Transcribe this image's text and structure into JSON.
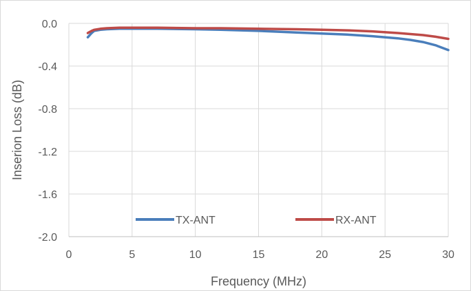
{
  "chart_data": {
    "type": "line",
    "title": "",
    "xlabel": "Frequency (MHz)",
    "ylabel": "Inserion Loss (dB)",
    "xlim": [
      0,
      30
    ],
    "ylim": [
      -2.0,
      0.0
    ],
    "xticks": [
      0,
      5,
      10,
      15,
      20,
      25,
      30
    ],
    "yticks": [
      0.0,
      -0.4,
      -0.8,
      -1.2,
      -1.6,
      -2.0
    ],
    "xtick_labels": [
      "0",
      "5",
      "10",
      "15",
      "20",
      "25",
      "30"
    ],
    "ytick_labels": [
      "0.0",
      "-0.4",
      "-0.8",
      "-1.2",
      "-1.6",
      "-2.0"
    ],
    "grid": true,
    "legend_position": "bottom-inside",
    "series": [
      {
        "name": "TX-ANT",
        "color": "#4a7ebb",
        "x": [
          1.5,
          1.8,
          2.0,
          2.5,
          3.0,
          4.0,
          5.0,
          7.0,
          10.0,
          12.0,
          15.0,
          18.0,
          20.0,
          22.0,
          24.0,
          26.0,
          27.0,
          28.0,
          29.0,
          30.0
        ],
        "y": [
          -0.13,
          -0.09,
          -0.07,
          -0.06,
          -0.055,
          -0.05,
          -0.05,
          -0.05,
          -0.055,
          -0.06,
          -0.07,
          -0.085,
          -0.095,
          -0.105,
          -0.12,
          -0.14,
          -0.155,
          -0.175,
          -0.205,
          -0.25
        ]
      },
      {
        "name": "RX-ANT",
        "color": "#be4b48",
        "x": [
          1.5,
          1.8,
          2.0,
          2.5,
          3.0,
          4.0,
          5.0,
          7.0,
          10.0,
          12.0,
          15.0,
          18.0,
          20.0,
          22.0,
          24.0,
          26.0,
          27.0,
          28.0,
          29.0,
          30.0
        ],
        "y": [
          -0.09,
          -0.07,
          -0.06,
          -0.05,
          -0.045,
          -0.04,
          -0.04,
          -0.04,
          -0.045,
          -0.045,
          -0.05,
          -0.055,
          -0.06,
          -0.065,
          -0.075,
          -0.09,
          -0.1,
          -0.11,
          -0.125,
          -0.145
        ]
      }
    ]
  }
}
